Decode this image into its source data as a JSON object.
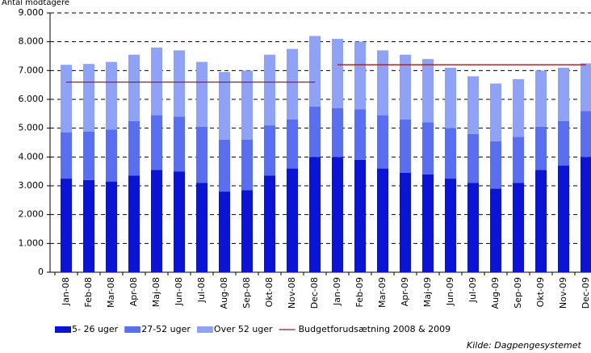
{
  "chart_data": {
    "type": "stacked-bar",
    "y_axis_title": "Antal modtagere",
    "source": "Kilde: Dagpengesystemet",
    "categories": [
      "Jan-08",
      "Feb-08",
      "Mar-08",
      "Apr-08",
      "Maj-08",
      "Jun-08",
      "Jul-08",
      "Aug-08",
      "Sep-08",
      "Okt-08",
      "Nov-08",
      "Dec-08",
      "Jan-09",
      "Feb-09",
      "Mar-09",
      "Apr-09",
      "Maj-09",
      "Jun-09",
      "Jul-09",
      "Aug-09",
      "Sep-09",
      "Okt-09",
      "Nov-09",
      "Dec-09"
    ],
    "series": [
      {
        "name": "5- 26 uger",
        "color": "#0a14d2",
        "values": [
          3250,
          3200,
          3150,
          3350,
          3550,
          3500,
          3100,
          2800,
          2850,
          3350,
          3600,
          4000,
          4000,
          3900,
          3600,
          3450,
          3400,
          3250,
          3100,
          2900,
          3100,
          3550,
          3700,
          4000
        ]
      },
      {
        "name": "27-52 uger",
        "color": "#5a6ef0",
        "values": [
          1600,
          1680,
          1800,
          1900,
          1900,
          1900,
          1950,
          1800,
          1750,
          1750,
          1700,
          1750,
          1700,
          1750,
          1850,
          1850,
          1800,
          1750,
          1700,
          1650,
          1600,
          1500,
          1550,
          1600
        ]
      },
      {
        "name": "Over 52 uger",
        "color": "#8fa2f5",
        "values": [
          2350,
          2350,
          2350,
          2300,
          2350,
          2300,
          2250,
          2350,
          2400,
          2450,
          2450,
          2450,
          2400,
          2350,
          2250,
          2250,
          2200,
          2100,
          2000,
          2000,
          2000,
          1950,
          1850,
          1650
        ]
      },
      {
        "name": "Budgetforudsætning 2008 & 2009",
        "color": "#9b1c1c",
        "type": "line",
        "values": [
          6600,
          6600,
          6600,
          6600,
          6600,
          6600,
          6600,
          6600,
          6600,
          6600,
          6600,
          6600,
          7200,
          7200,
          7200,
          7200,
          7200,
          7200,
          7200,
          7200,
          7200,
          7200,
          7200,
          7200
        ]
      }
    ],
    "ylim": [
      0,
      9000
    ],
    "yticks": [
      0,
      {
        "value": 1000,
        "label": "1.000"
      },
      {
        "value": 2000,
        "label": "2.000"
      },
      {
        "value": 3000,
        "label": "3.000"
      },
      {
        "value": 4000,
        "label": "4.000"
      },
      {
        "value": 5000,
        "label": "5.000"
      },
      {
        "value": 6000,
        "label": "6.000"
      },
      {
        "value": 7000,
        "label": "7.000"
      },
      {
        "value": 8000,
        "label": "8.000"
      },
      {
        "value": 9000,
        "label": "9.000"
      }
    ],
    "grid": true
  }
}
